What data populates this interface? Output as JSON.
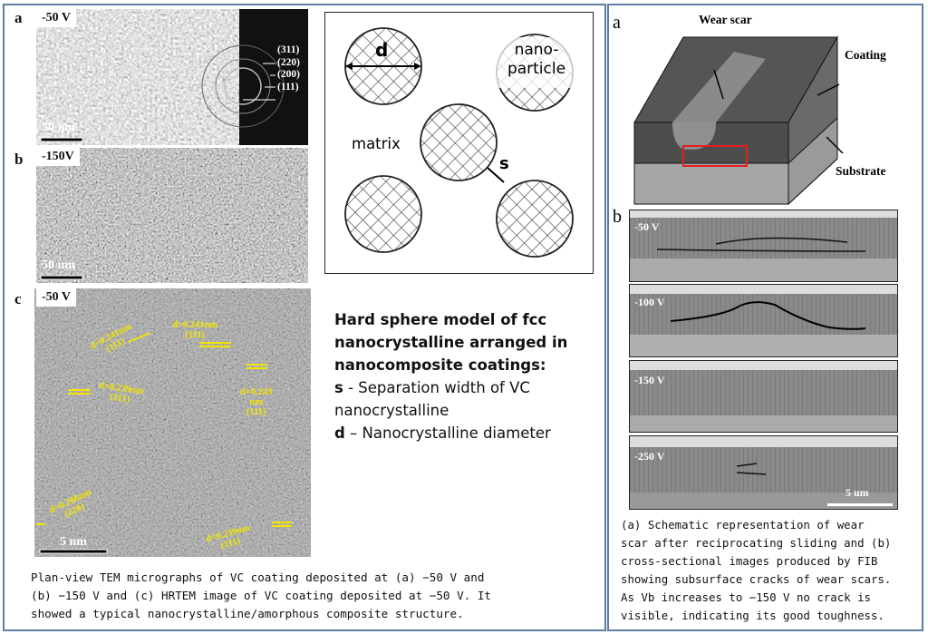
{
  "left_figure": {
    "panel_a": {
      "label": "a",
      "voltage": "-50 V",
      "scale_bar": "50 nm",
      "saed_rings": [
        "(311)",
        "(220)",
        "(200)",
        "(111)"
      ]
    },
    "panel_b": {
      "label": "b",
      "voltage": "-150V",
      "scale_bar": "50 nm"
    },
    "panel_c": {
      "label": "c",
      "voltage": "-50 V",
      "scale_bar": "5 nm",
      "annotations": [
        {
          "d": "d=0.241nm",
          "plane": "(111)"
        },
        {
          "d": "d=0.241nm",
          "plane": "(111)"
        },
        {
          "d": "d=0.239nm",
          "plane": "(111)"
        },
        {
          "d": "d=0.243 nm",
          "plane": "(111)"
        },
        {
          "d": "d=0.206nm",
          "plane": "(220)"
        },
        {
          "d": "d=0.239nm",
          "plane": "(111)"
        }
      ],
      "annotation_color": "#f2e600"
    },
    "caption": "Plan-view TEM micrographs of VC coating deposited at (a) −50 V and\n(b) −150 V and (c) HRTEM image of VC coating deposited at −50 V. It\nshowed a typical nanocrystalline/amorphous composite structure."
  },
  "model": {
    "diagram": {
      "d_label": "d",
      "particle_label": "nano-\nparticle",
      "matrix_label": "matrix",
      "s_label": "s"
    },
    "title": "Hard sphere model of fcc nanocrystalline arranged in nanocomposite coatings:",
    "s_key": "s",
    "s_desc": " - Separation width of VC nanocrystalline",
    "d_key": "d",
    "d_desc": " – Nanocrystalline diameter"
  },
  "right_figure": {
    "panel_a": {
      "label": "a",
      "wear_scar": "Wear scar",
      "coating": "Coating",
      "substrate": "Substrate",
      "highlight_color": "#e02020"
    },
    "panel_b": {
      "label": "b",
      "rows": [
        "-50 V",
        "-100 V",
        "-150 V",
        "-250 V"
      ],
      "scale_bar": "5 um"
    },
    "caption": "(a) Schematic representation of wear\nscar after reciprocating sliding and (b)\ncross-sectional images produced by FIB\nshowing subsurface cracks of wear scars.\nAs Vb increases to −150 V no crack is\nvisible, indicating its good toughness."
  },
  "frame_color": "#5d7fa3"
}
